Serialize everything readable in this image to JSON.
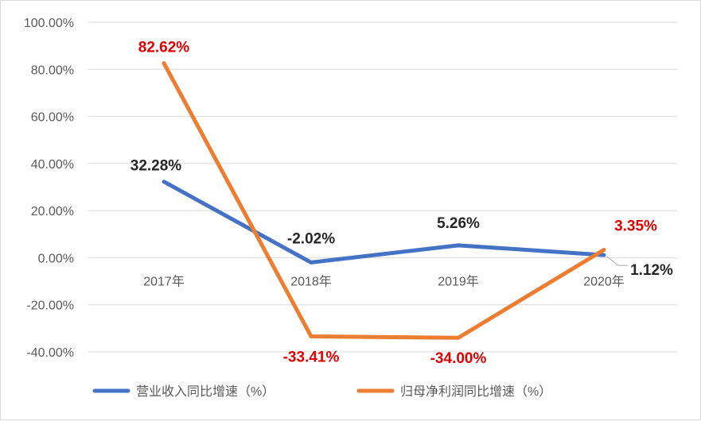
{
  "chart_data": {
    "type": "line",
    "categories": [
      "2017年",
      "2018年",
      "2019年",
      "2020年"
    ],
    "ylim": [
      -40,
      100
    ],
    "yticks": [
      -40,
      -20,
      0,
      20,
      40,
      60,
      80,
      100
    ],
    "ytick_labels": [
      "-40.00%",
      "-20.00%",
      "0.00%",
      "20.00%",
      "40.00%",
      "60.00%",
      "80.00%",
      "100.00%"
    ],
    "grid": true,
    "legend_position": "bottom",
    "series": [
      {
        "name": "营业收入同比增速（%）",
        "values": [
          32.28,
          -2.02,
          5.26,
          1.12
        ],
        "labels": [
          "32.28%",
          "-2.02%",
          "5.26%",
          "1.12%"
        ],
        "color": "#4472c4",
        "label_color": "#262626"
      },
      {
        "name": "归母净利润同比增速（%）",
        "values": [
          82.62,
          -33.41,
          -34.0,
          3.35
        ],
        "labels": [
          "82.62%",
          "-33.41%",
          "-34.00%",
          "3.35%"
        ],
        "color": "#ed7d31",
        "label_color": "#e00000"
      }
    ]
  }
}
